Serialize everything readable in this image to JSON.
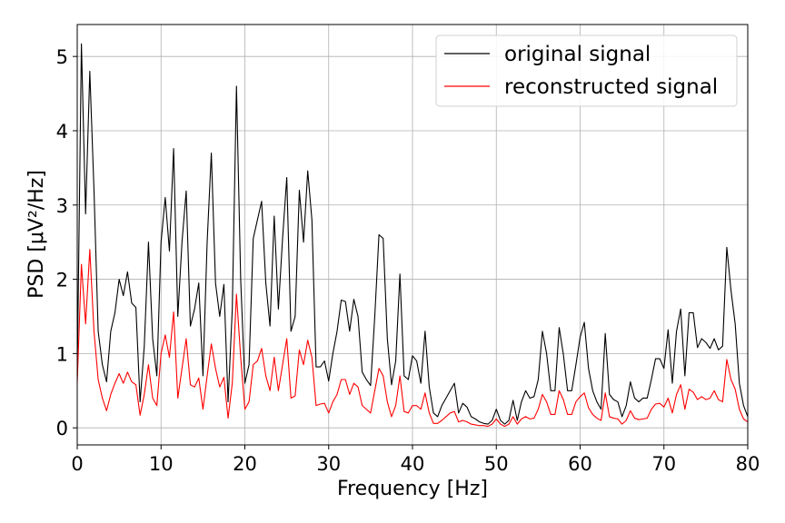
{
  "chart_data": {
    "type": "line",
    "title": "",
    "xlabel": "Frequency [Hz]",
    "ylabel": "PSD [μV²/Hz]",
    "xlim": [
      0,
      80
    ],
    "ylim": [
      -0.23,
      5.43
    ],
    "xticks": [
      0,
      10,
      20,
      30,
      40,
      50,
      60,
      70,
      80
    ],
    "yticks": [
      0,
      1,
      2,
      3,
      4,
      5
    ],
    "grid": true,
    "legend_position": "upper right",
    "x": [
      0,
      0.5,
      1,
      1.5,
      2,
      2.5,
      3,
      3.5,
      4,
      4.5,
      5,
      5.5,
      6,
      6.5,
      7,
      7.5,
      8,
      8.5,
      9,
      9.5,
      10,
      10.5,
      11,
      11.5,
      12,
      12.5,
      13,
      13.5,
      14,
      14.5,
      15,
      15.5,
      16,
      16.5,
      17,
      17.5,
      18,
      18.5,
      19,
      19.5,
      20,
      20.5,
      21,
      21.5,
      22,
      22.5,
      23,
      23.5,
      24,
      24.5,
      25,
      25.5,
      26,
      26.5,
      27,
      27.5,
      28,
      28.5,
      29,
      29.5,
      30,
      30.5,
      31,
      31.5,
      32,
      32.5,
      33,
      33.5,
      34,
      34.5,
      35,
      35.5,
      36,
      36.5,
      37,
      37.5,
      38,
      38.5,
      39,
      39.5,
      40,
      40.5,
      41,
      41.5,
      42,
      42.5,
      43,
      43.5,
      44,
      44.5,
      45,
      45.5,
      46,
      46.5,
      47,
      47.5,
      48,
      48.5,
      49,
      49.5,
      50,
      50.5,
      51,
      51.5,
      52,
      52.5,
      53,
      53.5,
      54,
      54.5,
      55,
      55.5,
      56,
      56.5,
      57,
      57.5,
      58,
      58.5,
      59,
      59.5,
      60,
      60.5,
      61,
      61.5,
      62,
      62.5,
      63,
      63.5,
      64,
      64.5,
      65,
      65.5,
      66,
      66.5,
      67,
      67.5,
      68,
      68.5,
      69,
      69.5,
      70,
      70.5,
      71,
      71.5,
      72,
      72.5,
      73,
      73.5,
      74,
      74.5,
      75,
      75.5,
      76,
      76.5,
      77,
      77.5,
      78,
      78.5,
      79,
      79.5,
      80
    ],
    "series": [
      {
        "name": "original signal",
        "color": "#000000",
        "values": [
          0.7,
          5.17,
          2.88,
          4.8,
          3.2,
          1.3,
          0.85,
          0.62,
          1.3,
          1.55,
          2.0,
          1.78,
          2.1,
          1.68,
          1.62,
          0.35,
          1.1,
          2.5,
          1.2,
          0.7,
          2.5,
          3.1,
          2.38,
          3.76,
          1.5,
          2.5,
          3.19,
          1.37,
          1.6,
          1.95,
          0.7,
          2.5,
          3.7,
          1.95,
          1.5,
          1.93,
          0.35,
          1.6,
          4.6,
          2.0,
          0.6,
          0.85,
          2.55,
          2.8,
          3.05,
          1.95,
          1.37,
          2.85,
          1.6,
          2.55,
          3.37,
          1.3,
          1.5,
          3.2,
          2.5,
          3.46,
          2.8,
          0.82,
          0.82,
          0.9,
          0.63,
          1.0,
          1.3,
          1.72,
          1.7,
          1.3,
          1.73,
          1.5,
          0.75,
          0.65,
          0.57,
          1.5,
          2.6,
          2.55,
          1.2,
          0.58,
          0.9,
          2.07,
          0.7,
          0.65,
          0.97,
          0.9,
          0.6,
          1.3,
          0.55,
          0.2,
          0.15,
          0.3,
          0.4,
          0.5,
          0.6,
          0.2,
          0.33,
          0.28,
          0.15,
          0.12,
          0.08,
          0.06,
          0.05,
          0.1,
          0.25,
          0.1,
          0.05,
          0.1,
          0.37,
          0.1,
          0.35,
          0.5,
          0.4,
          0.42,
          0.65,
          1.3,
          1.0,
          0.5,
          0.5,
          1.35,
          0.99,
          0.5,
          0.5,
          0.85,
          1.22,
          1.42,
          0.8,
          0.5,
          0.35,
          0.25,
          1.27,
          0.45,
          0.38,
          0.35,
          0.15,
          0.3,
          0.62,
          0.4,
          0.35,
          0.4,
          0.4,
          0.65,
          0.93,
          0.93,
          0.8,
          1.32,
          0.6,
          1.3,
          1.6,
          0.7,
          1.55,
          1.55,
          1.08,
          1.2,
          1.15,
          1.07,
          1.2,
          1.05,
          1.1,
          2.43,
          1.85,
          1.4,
          0.6,
          0.3,
          0.15
        ]
      },
      {
        "name": "reconstructed signal",
        "color": "#ff0000",
        "values": [
          0.6,
          2.2,
          1.4,
          2.4,
          1.3,
          0.65,
          0.4,
          0.23,
          0.45,
          0.6,
          0.73,
          0.6,
          0.75,
          0.62,
          0.58,
          0.17,
          0.45,
          0.85,
          0.4,
          0.3,
          1.0,
          1.25,
          0.95,
          1.56,
          0.4,
          0.8,
          1.2,
          0.58,
          0.55,
          0.67,
          0.25,
          0.7,
          1.13,
          0.8,
          0.55,
          0.68,
          0.13,
          0.6,
          1.8,
          0.95,
          0.25,
          0.35,
          0.85,
          0.9,
          1.07,
          0.7,
          0.5,
          0.95,
          0.5,
          0.85,
          1.2,
          0.4,
          0.43,
          1.05,
          0.85,
          1.18,
          0.95,
          0.3,
          0.32,
          0.33,
          0.2,
          0.35,
          0.45,
          0.65,
          0.65,
          0.45,
          0.6,
          0.55,
          0.3,
          0.25,
          0.2,
          0.5,
          0.8,
          0.7,
          0.35,
          0.15,
          0.3,
          0.7,
          0.22,
          0.2,
          0.3,
          0.3,
          0.25,
          0.47,
          0.2,
          0.06,
          0.06,
          0.1,
          0.15,
          0.2,
          0.22,
          0.08,
          0.1,
          0.08,
          0.05,
          0.04,
          0.03,
          0.03,
          0.02,
          0.05,
          0.12,
          0.05,
          0.02,
          0.05,
          0.15,
          0.05,
          0.12,
          0.15,
          0.12,
          0.13,
          0.25,
          0.45,
          0.35,
          0.18,
          0.18,
          0.5,
          0.38,
          0.18,
          0.18,
          0.35,
          0.42,
          0.47,
          0.27,
          0.18,
          0.13,
          0.1,
          0.47,
          0.15,
          0.13,
          0.12,
          0.05,
          0.1,
          0.23,
          0.13,
          0.11,
          0.12,
          0.13,
          0.25,
          0.32,
          0.33,
          0.28,
          0.4,
          0.2,
          0.45,
          0.58,
          0.25,
          0.52,
          0.48,
          0.38,
          0.42,
          0.38,
          0.4,
          0.5,
          0.38,
          0.35,
          0.92,
          0.65,
          0.52,
          0.25,
          0.12,
          0.08
        ]
      }
    ]
  }
}
